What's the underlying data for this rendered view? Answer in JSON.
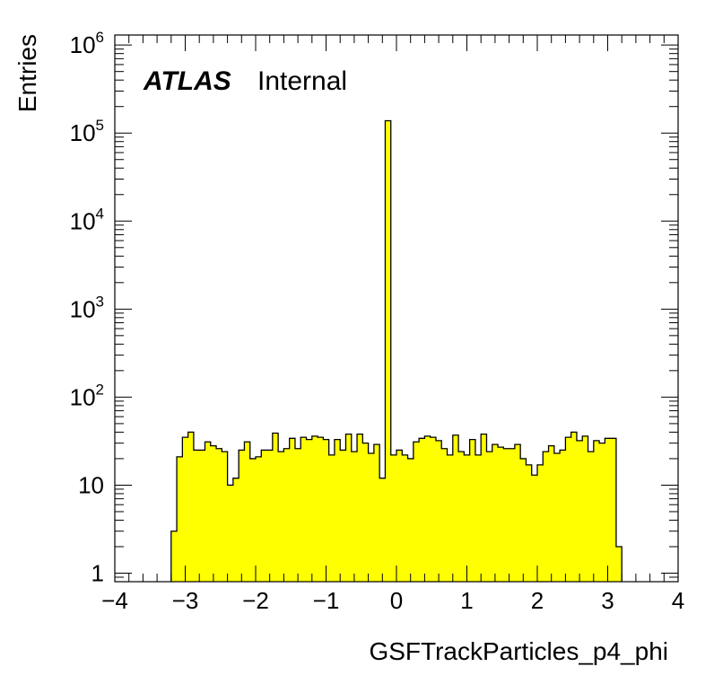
{
  "chart_data": {
    "type": "histogram",
    "xlabel": "GSFTrackParticles_p4_phi",
    "ylabel": "Entries",
    "xlim": [
      -4,
      4
    ],
    "ylim": [
      0.8,
      1300000
    ],
    "yscale": "log",
    "x_ticks": [
      {
        "value": -4,
        "label": "−4"
      },
      {
        "value": -3,
        "label": "−3"
      },
      {
        "value": -2,
        "label": "−2"
      },
      {
        "value": -1,
        "label": "−1"
      },
      {
        "value": 0,
        "label": "0"
      },
      {
        "value": 1,
        "label": "1"
      },
      {
        "value": 2,
        "label": "2"
      },
      {
        "value": 3,
        "label": "3"
      },
      {
        "value": 4,
        "label": "4"
      }
    ],
    "y_ticks": [
      {
        "value": 1,
        "base": "1",
        "exp": ""
      },
      {
        "value": 10,
        "base": "10",
        "exp": ""
      },
      {
        "value": 100,
        "base": "10",
        "exp": "2"
      },
      {
        "value": 1000,
        "base": "10",
        "exp": "3"
      },
      {
        "value": 10000,
        "base": "10",
        "exp": "4"
      },
      {
        "value": 100000,
        "base": "10",
        "exp": "5"
      },
      {
        "value": 1000000,
        "base": "10",
        "exp": "6"
      }
    ],
    "label_main": "ATLAS",
    "label_sub": "Internal",
    "fill_color": "#ffff00",
    "line_color": "#000000",
    "bin_start": -3.2,
    "bin_width": 0.08,
    "values": [
      3,
      21,
      35,
      40,
      25,
      25,
      31,
      28,
      26,
      24,
      10,
      12,
      25,
      31,
      20,
      21,
      25,
      25,
      39,
      24,
      26,
      34,
      26,
      35,
      33,
      36,
      35,
      33,
      22,
      33,
      25,
      38,
      24,
      38,
      30,
      23,
      29,
      12,
      138000,
      22,
      25,
      22,
      20,
      31,
      34,
      36,
      35,
      32,
      26,
      22,
      37,
      24,
      22,
      33,
      22,
      38,
      24,
      29,
      27,
      26,
      26,
      29,
      20,
      17,
      13,
      17,
      24,
      28,
      23,
      25,
      35,
      40,
      32,
      36,
      24,
      32,
      30,
      34,
      34,
      2
    ]
  }
}
